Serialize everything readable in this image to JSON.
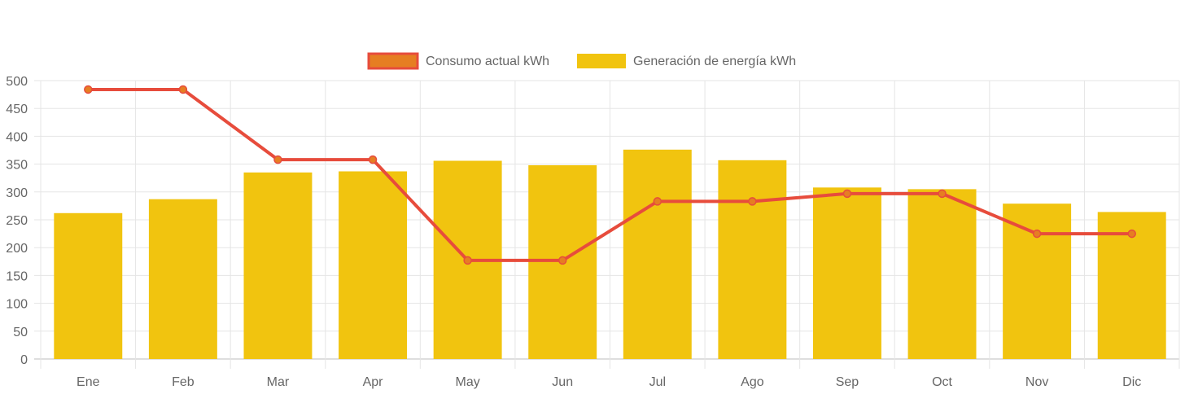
{
  "chart_data": {
    "type": "bar",
    "categories": [
      "Ene",
      "Feb",
      "Mar",
      "Apr",
      "May",
      "Jun",
      "Jul",
      "Ago",
      "Sep",
      "Oct",
      "Nov",
      "Dic"
    ],
    "series": [
      {
        "name": "Consumo actual kWh",
        "type": "line",
        "values": [
          484,
          484,
          358,
          358,
          177,
          177,
          283,
          283,
          297,
          297,
          225,
          225
        ],
        "color": "#e74c3c",
        "point_fill": "#e67e22"
      },
      {
        "name": "Generación de energía kWh",
        "type": "bar",
        "values": [
          262,
          287,
          335,
          337,
          356,
          348,
          376,
          357,
          308,
          305,
          279,
          264
        ],
        "color": "#f1c40f"
      }
    ],
    "yticks": [
      "0",
      "50",
      "100",
      "150",
      "200",
      "250",
      "300",
      "350",
      "400",
      "450",
      "500"
    ],
    "ylim": [
      0,
      500
    ],
    "grid": true,
    "legend_position": "top-center"
  }
}
